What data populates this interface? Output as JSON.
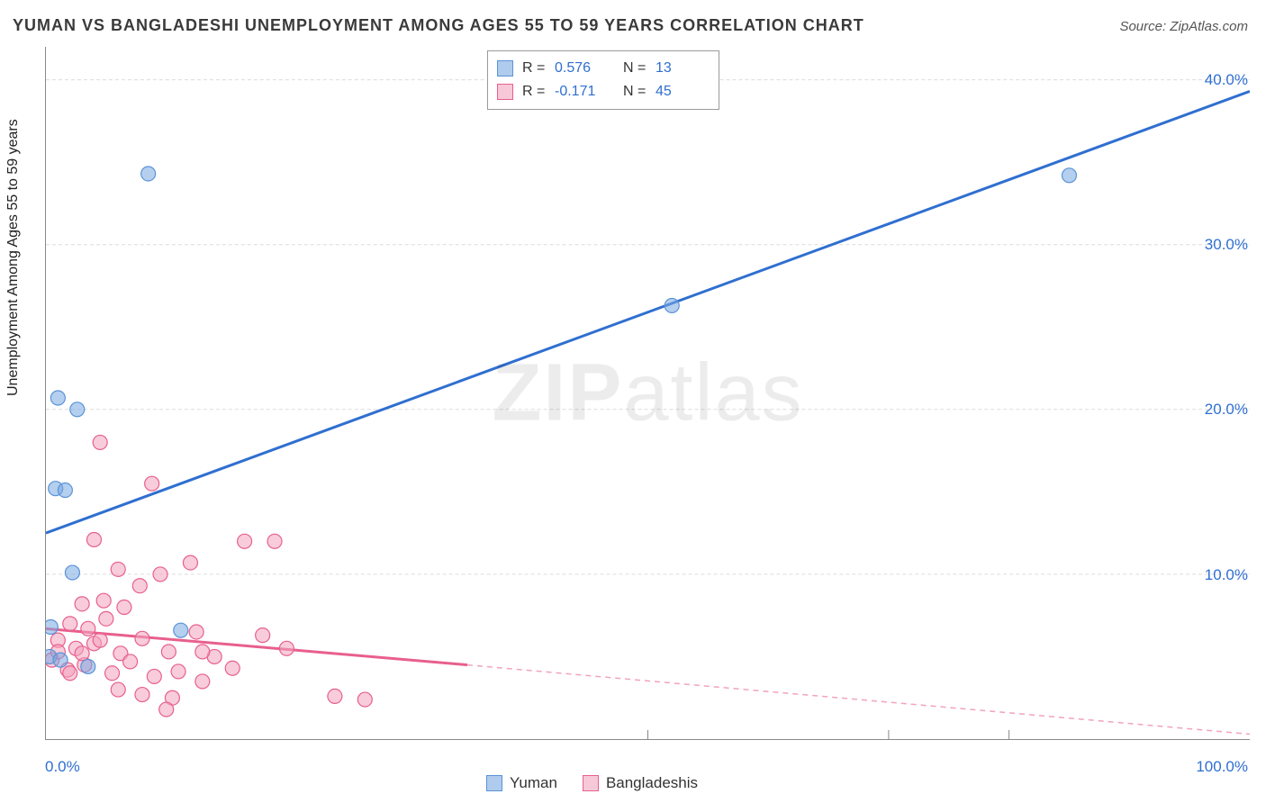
{
  "meta": {
    "title": "YUMAN VS BANGLADESHI UNEMPLOYMENT AMONG AGES 55 TO 59 YEARS CORRELATION CHART",
    "source_label": "Source: ZipAtlas.com",
    "watermark_primary": "ZIP",
    "watermark_secondary": "atlas"
  },
  "chart": {
    "type": "scatter",
    "ylabel": "Unemployment Among Ages 55 to 59 years",
    "xlim": [
      0,
      100
    ],
    "ylim": [
      0,
      42
    ],
    "x_ticks": [
      0,
      50,
      100
    ],
    "x_tick_labels": [
      "0.0%",
      "",
      "100.0%"
    ],
    "y_ticks": [
      10,
      20,
      30,
      40
    ],
    "y_tick_labels": [
      "10.0%",
      "20.0%",
      "30.0%",
      "40.0%"
    ],
    "minor_x_ticks": [
      50,
      70,
      80
    ],
    "background_color": "#ffffff",
    "grid_color": "#dcdcdc",
    "marker_radius": 8,
    "series": {
      "blue": {
        "name": "Yuman",
        "color_fill": "#79a8e1",
        "color_stroke": "#5a93d6",
        "R": "0.576",
        "N": "13",
        "trend": {
          "x1": 0,
          "y1": 12.5,
          "x2": 100,
          "y2": 39.3
        },
        "points": [
          {
            "x": 1.0,
            "y": 20.7
          },
          {
            "x": 2.6,
            "y": 20.0
          },
          {
            "x": 8.5,
            "y": 34.3
          },
          {
            "x": 0.8,
            "y": 15.2
          },
          {
            "x": 1.6,
            "y": 15.1
          },
          {
            "x": 2.2,
            "y": 10.1
          },
          {
            "x": 11.2,
            "y": 6.6
          },
          {
            "x": 52.0,
            "y": 26.3
          },
          {
            "x": 85.0,
            "y": 34.2
          },
          {
            "x": 0.3,
            "y": 5.0
          },
          {
            "x": 1.2,
            "y": 4.8
          },
          {
            "x": 3.5,
            "y": 4.4
          },
          {
            "x": 0.4,
            "y": 6.8
          }
        ]
      },
      "pink": {
        "name": "Bangladeshis",
        "color_fill": "#f2a3bd",
        "color_stroke": "#e85f8e",
        "R": "-0.171",
        "N": "45",
        "trend_solid": {
          "x1": 0,
          "y1": 6.7,
          "x2": 35,
          "y2": 4.5
        },
        "trend_dash": {
          "x1": 35,
          "y1": 4.5,
          "x2": 100,
          "y2": 0.3
        },
        "points": [
          {
            "x": 4.5,
            "y": 18.0
          },
          {
            "x": 8.8,
            "y": 15.5
          },
          {
            "x": 4.0,
            "y": 12.1
          },
          {
            "x": 16.5,
            "y": 12.0
          },
          {
            "x": 19.0,
            "y": 12.0
          },
          {
            "x": 6.0,
            "y": 10.3
          },
          {
            "x": 9.5,
            "y": 10.0
          },
          {
            "x": 12.0,
            "y": 10.7
          },
          {
            "x": 3.0,
            "y": 8.2
          },
          {
            "x": 4.8,
            "y": 8.4
          },
          {
            "x": 6.5,
            "y": 8.0
          },
          {
            "x": 7.8,
            "y": 9.3
          },
          {
            "x": 2.0,
            "y": 7.0
          },
          {
            "x": 3.5,
            "y": 6.7
          },
          {
            "x": 5.0,
            "y": 7.3
          },
          {
            "x": 1.0,
            "y": 6.0
          },
          {
            "x": 2.5,
            "y": 5.5
          },
          {
            "x": 4.0,
            "y": 5.8
          },
          {
            "x": 6.2,
            "y": 5.2
          },
          {
            "x": 8.0,
            "y": 6.1
          },
          {
            "x": 10.2,
            "y": 5.3
          },
          {
            "x": 12.5,
            "y": 6.5
          },
          {
            "x": 14.0,
            "y": 5.0
          },
          {
            "x": 18.0,
            "y": 6.3
          },
          {
            "x": 20.0,
            "y": 5.5
          },
          {
            "x": 0.5,
            "y": 4.8
          },
          {
            "x": 1.8,
            "y": 4.2
          },
          {
            "x": 3.2,
            "y": 4.5
          },
          {
            "x": 5.5,
            "y": 4.0
          },
          {
            "x": 7.0,
            "y": 4.7
          },
          {
            "x": 9.0,
            "y": 3.8
          },
          {
            "x": 11.0,
            "y": 4.1
          },
          {
            "x": 13.0,
            "y": 3.5
          },
          {
            "x": 15.5,
            "y": 4.3
          },
          {
            "x": 6.0,
            "y": 3.0
          },
          {
            "x": 8.0,
            "y": 2.7
          },
          {
            "x": 10.5,
            "y": 2.5
          },
          {
            "x": 13.0,
            "y": 5.3
          },
          {
            "x": 10.0,
            "y": 1.8
          },
          {
            "x": 24.0,
            "y": 2.6
          },
          {
            "x": 26.5,
            "y": 2.4
          },
          {
            "x": 1.0,
            "y": 5.3
          },
          {
            "x": 2.0,
            "y": 4.0
          },
          {
            "x": 4.5,
            "y": 6.0
          },
          {
            "x": 3.0,
            "y": 5.2
          }
        ]
      }
    },
    "legend_bottom": [
      {
        "swatch": "blue",
        "label": "Yuman"
      },
      {
        "swatch": "pink",
        "label": "Bangladeshis"
      }
    ]
  }
}
